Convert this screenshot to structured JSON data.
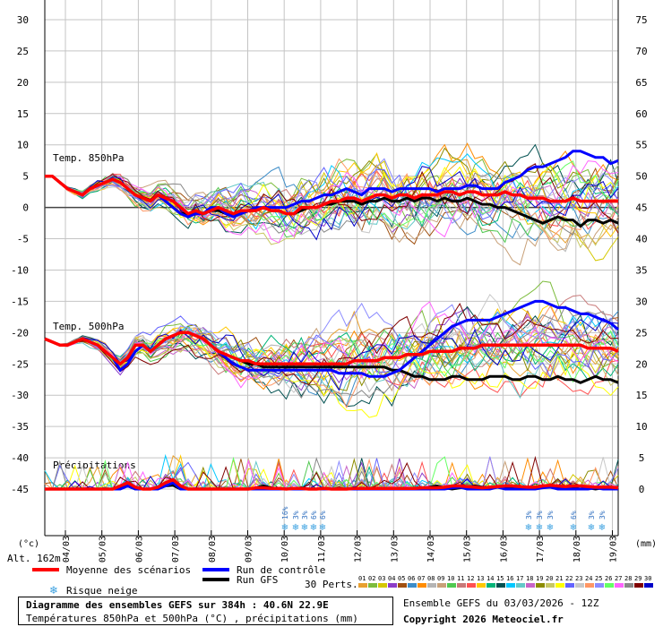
{
  "chart_data": {
    "type": "line",
    "left_axis_unit": "(°c)",
    "right_axis_unit": "(mm)",
    "left_ticks": [
      30,
      25,
      20,
      15,
      10,
      5,
      0,
      -5,
      -10,
      -15,
      -20,
      -25,
      -30,
      -35,
      -40,
      -45
    ],
    "right_ticks": [
      75,
      70,
      65,
      60,
      55,
      50,
      45,
      40,
      35,
      30,
      25,
      20,
      15,
      10,
      5,
      0
    ],
    "x_dates": [
      "04/03",
      "05/03",
      "06/03",
      "07/03",
      "08/03",
      "09/03",
      "10/03",
      "11/03",
      "12/03",
      "13/03",
      "14/03",
      "15/03",
      "16/03",
      "17/03",
      "18/03",
      "19/03"
    ],
    "altitude": "Alt. 162m",
    "panel_labels": {
      "t850": "Temp. 850hPa",
      "t500": "Temp. 500hPa",
      "precip": "Précipitations"
    },
    "legend": {
      "mean": "Moyenne des scénarios",
      "control": "Run de contrôle",
      "gfs": "Run GFS",
      "snow": "Risque neige",
      "perts": "30 Perts."
    },
    "series_colors": {
      "mean": "#ff0000",
      "control": "#0000ff",
      "gfs": "#000000"
    },
    "t850": {
      "mean": [
        5,
        5,
        4,
        3,
        2.5,
        2,
        3,
        3.5,
        4,
        4.5,
        4,
        3,
        2,
        1.5,
        1,
        2,
        1.5,
        1,
        0,
        -1,
        -0.5,
        -1,
        -0.5,
        0,
        -0.5,
        -1,
        -0.5,
        -0.5,
        -0.5,
        0,
        -0.5,
        -0.5,
        -1,
        -1,
        0,
        0,
        0,
        0.5,
        1,
        1,
        1.5,
        1.5,
        1,
        1.5,
        2,
        2,
        1.5,
        2,
        2,
        1.5,
        2,
        2,
        2,
        2.5,
        2.5,
        2,
        2.5,
        2.5,
        2,
        2,
        2,
        2.5,
        2,
        2,
        1.5,
        1.5,
        1.5,
        1,
        1,
        1,
        1.5,
        1,
        1,
        1,
        1,
        1,
        1
      ],
      "control": [
        5,
        5,
        4,
        3,
        2.5,
        2,
        3,
        3.5,
        4,
        4.5,
        4,
        3,
        2,
        1.5,
        1,
        2,
        1,
        0,
        -1,
        -1.5,
        -1,
        -1,
        0,
        0,
        -1,
        -1.5,
        -1,
        -0.5,
        0,
        0,
        0,
        0,
        0,
        0.5,
        1,
        1,
        1.5,
        2,
        2,
        2.5,
        3,
        2.5,
        2,
        3,
        3,
        3,
        2.5,
        3,
        3,
        3,
        3,
        3,
        2.5,
        3,
        3,
        3,
        3.5,
        3.5,
        3,
        3,
        3,
        4,
        4.5,
        5,
        6,
        6.5,
        6.5,
        7,
        7.5,
        8,
        9,
        9,
        8.5,
        8,
        8,
        7,
        7.5
      ],
      "gfs": [
        5,
        5,
        4,
        3,
        2.5,
        2,
        3,
        3.5,
        4,
        4.5,
        4,
        3,
        2,
        1.5,
        1,
        2,
        1,
        0,
        -1,
        -1,
        -1,
        -1,
        -0.5,
        -0.5,
        -1,
        -1,
        -1,
        -0.5,
        -0.5,
        0,
        -0.5,
        -0.5,
        -1,
        -1,
        -0.5,
        0,
        0,
        0.5,
        0.5,
        1,
        1,
        1,
        0.5,
        1,
        1,
        1.5,
        1,
        1,
        1.5,
        1,
        1.5,
        1.5,
        1,
        1.5,
        1,
        1,
        1.5,
        1,
        0.5,
        0.5,
        0,
        0,
        -0.5,
        -1,
        -1.5,
        -2,
        -2.5,
        -2,
        -1.5,
        -2,
        -2,
        -3,
        -2,
        -2,
        -2.5,
        -2,
        -2.5
      ]
    },
    "t500": {
      "mean": [
        -21,
        -21.5,
        -22,
        -22,
        -21.5,
        -21,
        -21.5,
        -22,
        -23,
        -24,
        -25,
        -24,
        -22,
        -22,
        -23,
        -22,
        -21,
        -20.5,
        -20,
        -20,
        -20.5,
        -21,
        -22,
        -23,
        -23.5,
        -24,
        -24.5,
        -24.5,
        -25,
        -25,
        -25,
        -25,
        -25,
        -25,
        -25,
        -25,
        -25,
        -25,
        -25,
        -25,
        -25,
        -24.5,
        -24.5,
        -24.5,
        -24.5,
        -24,
        -24,
        -24,
        -23.5,
        -23.5,
        -23.5,
        -23,
        -23,
        -23,
        -23,
        -22.5,
        -22.5,
        -22.5,
        -22,
        -22,
        -22,
        -22,
        -22,
        -22,
        -22,
        -22,
        -22,
        -22,
        -22,
        -22,
        -22,
        -22,
        -22.5,
        -22.5,
        -22.5,
        -22.5,
        -23
      ],
      "control": [
        -21,
        -21.5,
        -22,
        -22,
        -21.5,
        -21,
        -21.5,
        -22,
        -23,
        -24,
        -26,
        -25,
        -23,
        -22,
        -23,
        -22,
        -21,
        -20.5,
        -20,
        -20,
        -20.5,
        -21,
        -22,
        -23,
        -24,
        -25,
        -25.5,
        -26,
        -26,
        -26,
        -26,
        -26,
        -26,
        -26,
        -26,
        -26,
        -26,
        -26,
        -26,
        -26.5,
        -26.5,
        -26.5,
        -26.5,
        -27,
        -27,
        -27,
        -26.5,
        -26,
        -25,
        -24,
        -23,
        -22,
        -21,
        -20,
        -19,
        -18.5,
        -18,
        -18,
        -18,
        -18,
        -17.5,
        -17,
        -16.5,
        -16,
        -15.5,
        -15,
        -15,
        -15.5,
        -16,
        -16,
        -16.5,
        -17,
        -17,
        -17.5,
        -18,
        -18.5,
        -19.5
      ],
      "gfs": [
        -21,
        -21.5,
        -22,
        -22,
        -21.5,
        -21,
        -21.5,
        -22,
        -23,
        -24,
        -25,
        -24,
        -22,
        -22,
        -23,
        -22,
        -21,
        -20.5,
        -20,
        -20,
        -20.5,
        -21,
        -22,
        -23,
        -23.5,
        -24,
        -24.5,
        -25,
        -25,
        -25.5,
        -25.5,
        -25.5,
        -25.5,
        -25.5,
        -25.5,
        -25.5,
        -25.5,
        -25.5,
        -25.5,
        -25.5,
        -25.5,
        -25.5,
        -25.5,
        -25.5,
        -25.5,
        -25.5,
        -26,
        -26,
        -26.5,
        -27,
        -27,
        -27.5,
        -27.5,
        -27.5,
        -27,
        -27,
        -27.5,
        -27.5,
        -27.5,
        -27,
        -27,
        -27,
        -27.5,
        -27.5,
        -27,
        -27,
        -27.5,
        -27.5,
        -27,
        -27.5,
        -27.5,
        -28,
        -27.5,
        -27,
        -27.5,
        -27.5,
        -28
      ]
    },
    "precip": {
      "mean": [
        0,
        0,
        0,
        0,
        0,
        0,
        0,
        0,
        0,
        0,
        0.5,
        1,
        0.3,
        0,
        0,
        0.3,
        1,
        1.5,
        0.5,
        0,
        0,
        0,
        0,
        0,
        0,
        0,
        0,
        0,
        0.2,
        0.2,
        0.1,
        0.1,
        0,
        0.1,
        0.1,
        0,
        0,
        0.1,
        0,
        0,
        0,
        0.1,
        0.1,
        0.1,
        0.1,
        0.1,
        0.1,
        0.1,
        0.1,
        0.1,
        0.2,
        0.2,
        0.2,
        0.3,
        0.5,
        0.5,
        0.4,
        0.3,
        0.2,
        0.3,
        0.4,
        0.5,
        0.5,
        0.4,
        0.3,
        0.3,
        0.5,
        0.6,
        0.5,
        0.4,
        0.5,
        0.5,
        0.4,
        0.3,
        0.3,
        0.3,
        0.2
      ],
      "control": [
        0,
        0,
        0,
        0,
        0,
        0,
        0,
        0,
        0,
        0,
        0,
        0.5,
        0,
        0,
        0,
        0,
        0.5,
        1,
        0,
        0,
        0,
        0,
        0,
        0,
        0,
        0,
        0,
        0,
        0,
        0,
        0,
        0,
        0,
        0,
        0,
        0,
        0,
        0,
        0,
        0,
        0,
        0,
        0,
        0,
        0,
        0,
        0,
        0,
        0,
        0,
        0,
        0,
        0,
        0,
        0.2,
        0.3,
        0,
        0,
        0,
        0,
        0.3,
        0,
        0,
        0,
        0,
        0,
        0.2,
        0.3,
        0,
        0,
        0,
        0,
        0,
        0.2,
        0,
        0,
        0
      ],
      "gfs": [
        0,
        0,
        0,
        0,
        0,
        0,
        0,
        0,
        0,
        0,
        0.3,
        0.5,
        0,
        0,
        0,
        0.2,
        0.5,
        0.6,
        0,
        0,
        0,
        0,
        0,
        0,
        0,
        0,
        0,
        0,
        0.2,
        0.5,
        0.2,
        0,
        0,
        0,
        0.2,
        0,
        0,
        0,
        0,
        0,
        0,
        0,
        0,
        0,
        0,
        0,
        0,
        0,
        0,
        0,
        0,
        0.3,
        0.5,
        0.2,
        0,
        0.2,
        0.3,
        0.5,
        0.3,
        0.2,
        0.3,
        0.2,
        0.2,
        0.3,
        0,
        0.2,
        0.5,
        0.3,
        0.2,
        0,
        0.3,
        0.5,
        0.2,
        0,
        0.2,
        0.2,
        0
      ]
    },
    "snow_days": [
      "10/03",
      "10/03",
      "11/03",
      "11/03",
      "11/03",
      "17/03",
      "17/03",
      "17/03",
      "18/03",
      "19/03",
      "19/03"
    ],
    "snow_percents": [
      "16%",
      "3%",
      "3%",
      "6%",
      "6%",
      "3%",
      "3%",
      "3%",
      "6%",
      "3%",
      "3%"
    ],
    "pert_labels": [
      "01",
      "02",
      "03",
      "04",
      "05",
      "06",
      "07",
      "08",
      "09",
      "10",
      "11",
      "12",
      "13",
      "14",
      "15",
      "16",
      "17",
      "18",
      "19",
      "20",
      "21",
      "22",
      "23",
      "24",
      "25",
      "26",
      "27",
      "28",
      "29",
      "30"
    ],
    "pert_colors": [
      "#e8a030",
      "#7cbc3c",
      "#d4c800",
      "#8c3cc8",
      "#a05010",
      "#3c8cc8",
      "#ff8c00",
      "#b4b4b4",
      "#c8a078",
      "#50c850",
      "#c87878",
      "#ff5050",
      "#ffc800",
      "#00b478",
      "#005050",
      "#00c8ff",
      "#64c8c8",
      "#c864c8",
      "#8c8c00",
      "#c8c864",
      "#ffff00",
      "#6464ff",
      "#c8c8c8",
      "#ff9664",
      "#8c8cff",
      "#64ff64",
      "#ff64ff",
      "#888888",
      "#800000",
      "#0000c8"
    ]
  },
  "footer": {
    "title": "Diagramme des ensembles GEFS sur 384h : 40.6N 22.9E",
    "subtitle": "Températures 850hPa et 500hPa (°C) , précipitations (mm)",
    "ensemble_info": "Ensemble GEFS du 03/03/2026 - 12Z",
    "copyright": "Copyright 2026 Meteociel.fr"
  }
}
